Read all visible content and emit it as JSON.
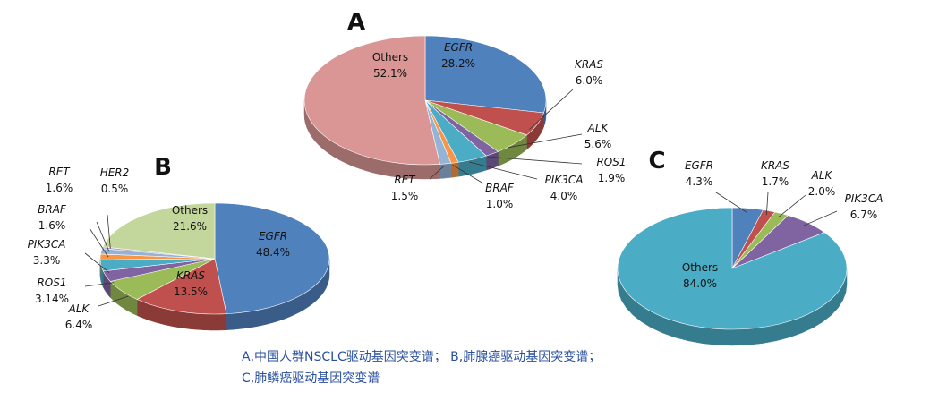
{
  "chart_data": [
    {
      "type": "pie",
      "title": "A",
      "categories": [
        "EGFR",
        "KRAS",
        "ALK",
        "ROS1",
        "PIK3CA",
        "BRAF",
        "RET",
        "Others"
      ],
      "values": [
        28.2,
        6.0,
        5.6,
        1.9,
        4.0,
        1.0,
        1.5,
        52.1
      ],
      "value_labels": [
        "28.2%",
        "6.0%",
        "5.6%",
        "1.9%",
        "4.0%",
        "1.0%",
        "1.5%",
        "52.1%"
      ],
      "colors": [
        "#4f81bd",
        "#c0504d",
        "#9bbb59",
        "#8064a2",
        "#4bacc6",
        "#f79646",
        "#95b3d7",
        "#d99694"
      ]
    },
    {
      "type": "pie",
      "title": "B",
      "categories": [
        "EGFR",
        "KRAS",
        "ALK",
        "ROS1",
        "PIK3CA",
        "BRAF",
        "RET",
        "HER2",
        "Others"
      ],
      "values": [
        48.4,
        13.5,
        6.4,
        3.14,
        3.3,
        1.6,
        1.6,
        0.5,
        21.6
      ],
      "value_labels": [
        "48.4%",
        "13.5%",
        "6.4%",
        "3.14%",
        "3.3%",
        "1.6%",
        "1.6%",
        "0.5%",
        "21.6%"
      ],
      "colors": [
        "#4f81bd",
        "#c0504d",
        "#9bbb59",
        "#8064a2",
        "#4bacc6",
        "#f79646",
        "#95b3d7",
        "#b3a2c7",
        "#c3d69b"
      ]
    },
    {
      "type": "pie",
      "title": "C",
      "categories": [
        "EGFR",
        "KRAS",
        "ALK",
        "PIK3CA",
        "Others"
      ],
      "values": [
        4.3,
        1.7,
        2.0,
        6.7,
        84.0
      ],
      "value_labels": [
        "4.3%",
        "1.7%",
        "2.0%",
        "6.7%",
        "84.0%"
      ],
      "colors": [
        "#4f81bd",
        "#c0504d",
        "#9bbb59",
        "#8064a2",
        "#4bacc6"
      ]
    }
  ],
  "caption": [
    "A,中国人群NSCLC驱动基因突变谱； B,肺腺癌驱动基因突变谱；",
    "C,肺鳞癌驱动基因突变谱"
  ]
}
